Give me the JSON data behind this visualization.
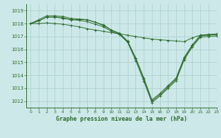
{
  "title": "Graphe pression niveau de la mer (hPa)",
  "bg_color": "#cce8e8",
  "grid_color": "#aacccc",
  "line_color": "#2d6b2d",
  "marker_color": "#2d6b2d",
  "xlim": [
    -0.5,
    23
  ],
  "ylim": [
    1011.5,
    1019.5
  ],
  "yticks": [
    1012,
    1013,
    1014,
    1015,
    1016,
    1017,
    1018,
    1019
  ],
  "xticks": [
    0,
    1,
    2,
    3,
    4,
    5,
    6,
    7,
    8,
    9,
    10,
    11,
    12,
    13,
    14,
    15,
    16,
    17,
    18,
    19,
    20,
    21,
    22,
    23
  ],
  "series": [
    [
      1018.0,
      1018.2,
      1018.5,
      1018.5,
      1018.45,
      1018.3,
      1018.3,
      1018.3,
      1018.1,
      1017.9,
      1017.5,
      1017.2,
      1016.6,
      1015.3,
      1013.7,
      1012.0,
      1012.5,
      1013.1,
      1013.7,
      1015.3,
      1016.3,
      1017.05,
      1017.1,
      1017.15
    ],
    [
      1018.0,
      1018.3,
      1018.6,
      1018.6,
      1018.55,
      1018.4,
      1018.35,
      1018.3,
      1018.1,
      1017.85,
      1017.5,
      1017.25,
      1016.65,
      1015.35,
      1013.8,
      1012.1,
      1012.6,
      1013.2,
      1013.8,
      1015.4,
      1016.35,
      1017.1,
      1017.15,
      1017.2
    ],
    [
      1018.0,
      1018.2,
      1018.5,
      1018.5,
      1018.4,
      1018.3,
      1018.25,
      1018.15,
      1017.95,
      1017.75,
      1017.4,
      1017.15,
      1016.55,
      1015.15,
      1013.55,
      1011.9,
      1012.4,
      1013.0,
      1013.6,
      1015.2,
      1016.2,
      1016.95,
      1017.0,
      1017.05
    ],
    [
      1018.0,
      1018.0,
      1018.05,
      1018.0,
      1017.95,
      1017.85,
      1017.75,
      1017.6,
      1017.5,
      1017.4,
      1017.3,
      1017.2,
      1017.1,
      1017.0,
      1016.9,
      1016.8,
      1016.75,
      1016.7,
      1016.65,
      1016.6,
      1016.9,
      1017.1,
      1017.15,
      1017.15
    ]
  ]
}
